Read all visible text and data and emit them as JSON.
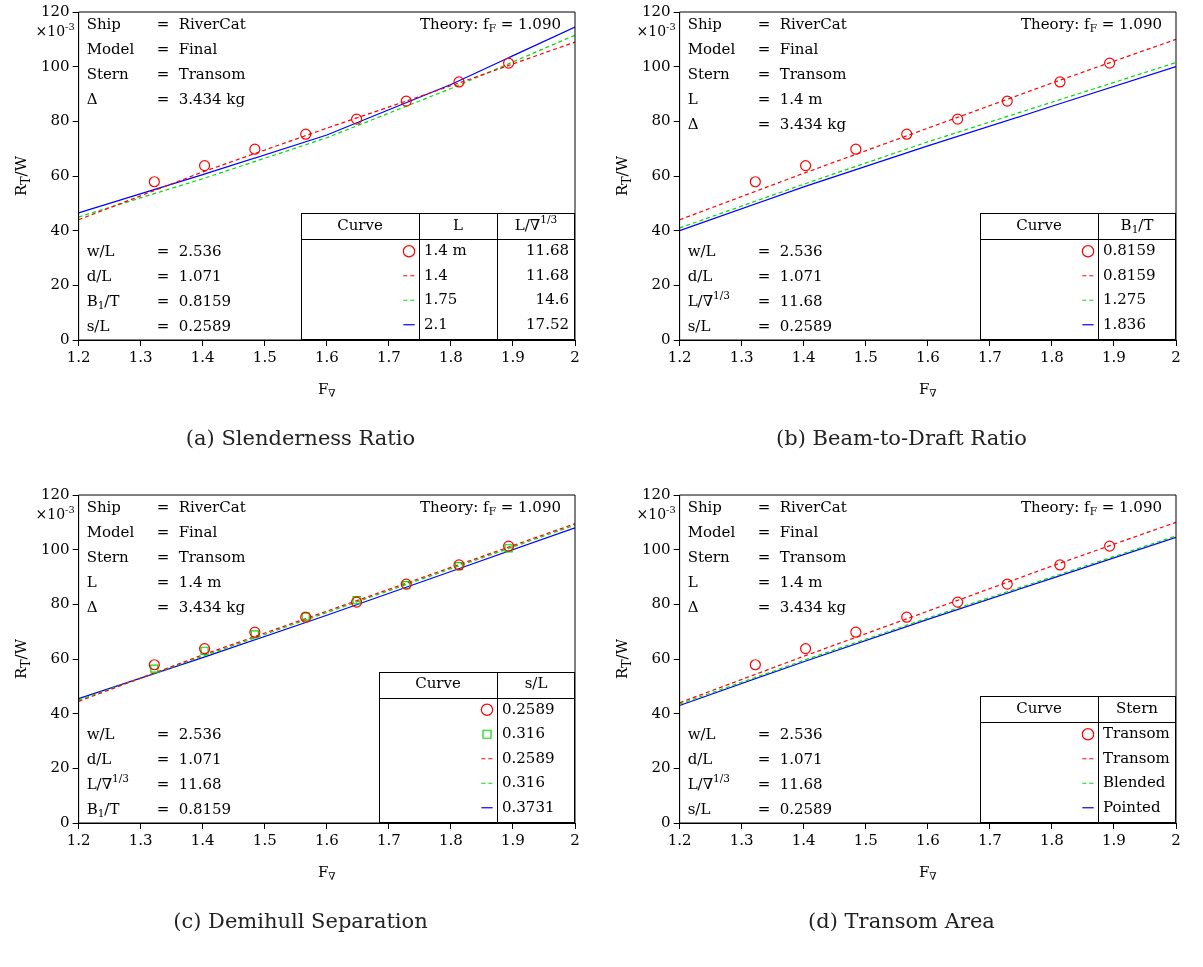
{
  "chart_data": [
    {
      "type": "line",
      "title": "(a) Slenderness Ratio",
      "subtitle": "Theory: f$_{F}$ = 1.090",
      "xlabel": "F$_{∇}$",
      "ylabel": "R$_{T}$/W",
      "xlim": [
        1.2,
        2
      ],
      "xticks": [
        1.2,
        1.3,
        1.4,
        1.5,
        1.6,
        1.7,
        1.8,
        1.9,
        2
      ],
      "ylim": [
        0,
        120
      ],
      "yticks": [
        0,
        20,
        40,
        60,
        80,
        100,
        120
      ],
      "legend": "bottom right",
      "legend_title": "Curve",
      "annotations": [
        "×10$^{-3}$",
        "Ship = RiverCat",
        "Model = Final",
        "Stern = Transom",
        "Δ = 3.434 kg",
        "w/L = 2.536",
        "d/L = 1.071",
        "B$_{1}$/T = 0.8159",
        "s/L = 0.2589",
        "L",
        "L/∇$^{1/3}$",
        "11.68",
        "11.68",
        "14.6",
        "17.52"
      ],
      "series": [
        {
          "name": "1.4 m",
          "type": "scatter",
          "marker": "circle",
          "color": "#ff0000",
          "x": [
            1.322,
            1.403,
            1.484,
            1.566,
            1.648,
            1.728,
            1.813,
            1.893
          ],
          "values": [
            57.9,
            63.8,
            69.8,
            75.3,
            80.8,
            87.4,
            94.4,
            101.3
          ]
        },
        {
          "name": "1.4",
          "type": "line",
          "line_style": "dashed",
          "color": "#ff0000",
          "x": [
            1.2,
            1.4,
            1.6,
            1.8,
            2.0
          ],
          "values": [
            44,
            61.5,
            77.5,
            93,
            109
          ]
        },
        {
          "name": "1.75",
          "type": "line",
          "line_style": "dashed",
          "color": "#00dd00",
          "x": [
            1.2,
            1.4,
            1.6,
            1.8,
            2.0
          ],
          "values": [
            45,
            59,
            74,
            92,
            111.5
          ]
        },
        {
          "name": "2.1",
          "type": "line",
          "line_style": "solid",
          "color": "#0000ff",
          "x": [
            1.2,
            1.4,
            1.6,
            1.8,
            2.0
          ],
          "values": [
            46.5,
            60.5,
            75,
            93.5,
            114.5
          ]
        }
      ]
    },
    {
      "type": "line",
      "title": "(b) Beam-to-Draft Ratio",
      "subtitle": "Theory: f$_{F}$ = 1.090",
      "xlabel": "F$_{∇}$",
      "ylabel": "R$_{T}$/W",
      "xlim": [
        1.2,
        2
      ],
      "xticks": [
        1.2,
        1.3,
        1.4,
        1.5,
        1.6,
        1.7,
        1.8,
        1.9,
        2
      ],
      "ylim": [
        0,
        120
      ],
      "yticks": [
        0,
        20,
        40,
        60,
        80,
        100,
        120
      ],
      "legend": "bottom right",
      "legend_title": "Curve",
      "annotations": [
        "×10$^{-3}$",
        "Ship = RiverCat",
        "Model = Final",
        "Stern = Transom",
        "L = 1.4 m",
        "Δ = 3.434 kg",
        "w/L = 2.536",
        "d/L = 1.071",
        "L/∇$^{1/3}$ = 11.68",
        "s/L = 0.2589",
        "B$_{1}$/T"
      ],
      "series": [
        {
          "name": "0.8159",
          "type": "scatter",
          "marker": "circle",
          "color": "#ff0000",
          "x": [
            1.322,
            1.403,
            1.484,
            1.566,
            1.648,
            1.728,
            1.813,
            1.893
          ],
          "values": [
            57.9,
            63.8,
            69.8,
            75.3,
            80.8,
            87.4,
            94.4,
            101.3
          ]
        },
        {
          "name": "0.8159",
          "type": "line",
          "line_style": "dashed",
          "color": "#ff0000",
          "x": [
            1.2,
            1.4,
            1.6,
            1.8,
            2.0
          ],
          "values": [
            44,
            61,
            77.5,
            94,
            110
          ]
        },
        {
          "name": "1.275",
          "type": "line",
          "line_style": "dashed",
          "color": "#00dd00",
          "x": [
            1.2,
            1.4,
            1.6,
            1.8,
            2.0
          ],
          "values": [
            41,
            57,
            72.5,
            87,
            101.5
          ]
        },
        {
          "name": "1.836",
          "type": "line",
          "line_style": "solid",
          "color": "#0000ff",
          "x": [
            1.2,
            1.4,
            1.6,
            1.8,
            2.0
          ],
          "values": [
            40,
            56,
            71,
            85.5,
            100
          ]
        }
      ]
    },
    {
      "type": "line",
      "title": "(c) Demihull Separation",
      "subtitle": "Theory: f$_{F}$ = 1.090",
      "xlabel": "F$_{∇}$",
      "ylabel": "R$_{T}$/W",
      "xlim": [
        1.2,
        2
      ],
      "xticks": [
        1.2,
        1.3,
        1.4,
        1.5,
        1.6,
        1.7,
        1.8,
        1.9,
        2
      ],
      "ylim": [
        0,
        120
      ],
      "yticks": [
        0,
        20,
        40,
        60,
        80,
        100,
        120
      ],
      "legend": "bottom right",
      "legend_title": "Curve",
      "annotations": [
        "×10$^{-3}$",
        "Ship = RiverCat",
        "Model = Final",
        "Stern = Transom",
        "L = 1.4 m",
        "Δ = 3.434 kg",
        "w/L = 2.536",
        "d/L = 1.071",
        "L/∇$^{1/3}$ = 11.68",
        "B$_{1}$/T = 0.8159",
        "s/L"
      ],
      "series": [
        {
          "name": "0.2589",
          "type": "scatter",
          "marker": "circle",
          "color": "#ff0000",
          "x": [
            1.322,
            1.403,
            1.484,
            1.566,
            1.648,
            1.728,
            1.813,
            1.893
          ],
          "values": [
            57.9,
            63.8,
            69.8,
            75.3,
            80.8,
            87.4,
            94.4,
            101.3
          ]
        },
        {
          "name": "0.316",
          "type": "scatter",
          "marker": "square",
          "color": "#00dd00",
          "x": [
            1.322,
            1.403,
            1.484,
            1.566,
            1.648,
            1.728,
            1.813,
            1.893
          ],
          "values": [
            56.5,
            63,
            69,
            75.5,
            81.5,
            87,
            94,
            100.5
          ]
        },
        {
          "name": "0.2589",
          "type": "line",
          "line_style": "dashed",
          "color": "#ff0000",
          "x": [
            1.2,
            1.4,
            1.6,
            1.8,
            2.0
          ],
          "values": [
            44.5,
            61.5,
            77.5,
            93.5,
            109.5
          ]
        },
        {
          "name": "0.316",
          "type": "line",
          "line_style": "dashed",
          "color": "#00dd00",
          "x": [
            1.2,
            1.4,
            1.6,
            1.8,
            2.0
          ],
          "values": [
            45,
            61,
            77,
            93,
            109
          ]
        },
        {
          "name": "0.3731",
          "type": "line",
          "line_style": "solid",
          "color": "#0000ff",
          "x": [
            1.2,
            1.4,
            1.6,
            1.8,
            2.0
          ],
          "values": [
            45.5,
            60.5,
            76,
            92,
            108
          ]
        }
      ]
    },
    {
      "type": "line",
      "title": "(d) Transom Area",
      "subtitle": "Theory: f$_{F}$ = 1.090",
      "xlabel": "F$_{∇}$",
      "ylabel": "R$_{T}$/W",
      "xlim": [
        1.2,
        2
      ],
      "xticks": [
        1.2,
        1.3,
        1.4,
        1.5,
        1.6,
        1.7,
        1.8,
        1.9,
        2
      ],
      "ylim": [
        0,
        120
      ],
      "yticks": [
        0,
        20,
        40,
        60,
        80,
        100,
        120
      ],
      "legend": "bottom right",
      "legend_title": "Curve",
      "annotations": [
        "×10$^{-3}$",
        "Ship = RiverCat",
        "Model = Final",
        "Stern = Transom",
        "L = 1.4 m",
        "Δ = 3.434 kg",
        "w/L = 2.536",
        "d/L = 1.071",
        "L/∇$^{1/3}$ = 11.68",
        "s/L = 0.2589",
        "Stern"
      ],
      "series": [
        {
          "name": "Transom",
          "type": "scatter",
          "marker": "circle",
          "color": "#ff0000",
          "x": [
            1.322,
            1.403,
            1.484,
            1.566,
            1.648,
            1.728,
            1.813,
            1.893
          ],
          "values": [
            57.9,
            63.8,
            69.8,
            75.3,
            80.8,
            87.4,
            94.4,
            101.3
          ]
        },
        {
          "name": "Transom",
          "type": "line",
          "line_style": "dashed",
          "color": "#ff0000",
          "x": [
            1.2,
            1.4,
            1.6,
            1.8,
            2.0
          ],
          "values": [
            44,
            61,
            77.5,
            94,
            110
          ]
        },
        {
          "name": "Blended",
          "type": "line",
          "line_style": "dashed",
          "color": "#00dd00",
          "x": [
            1.2,
            1.4,
            1.6,
            1.8,
            2.0
          ],
          "values": [
            43.5,
            59.5,
            75,
            90,
            105
          ]
        },
        {
          "name": "Pointed",
          "type": "line",
          "line_style": "solid",
          "color": "#0000ff",
          "x": [
            1.2,
            1.4,
            1.6,
            1.8,
            2.0
          ],
          "values": [
            43,
            59,
            74.5,
            89.5,
            104.5
          ]
        }
      ]
    }
  ]
}
